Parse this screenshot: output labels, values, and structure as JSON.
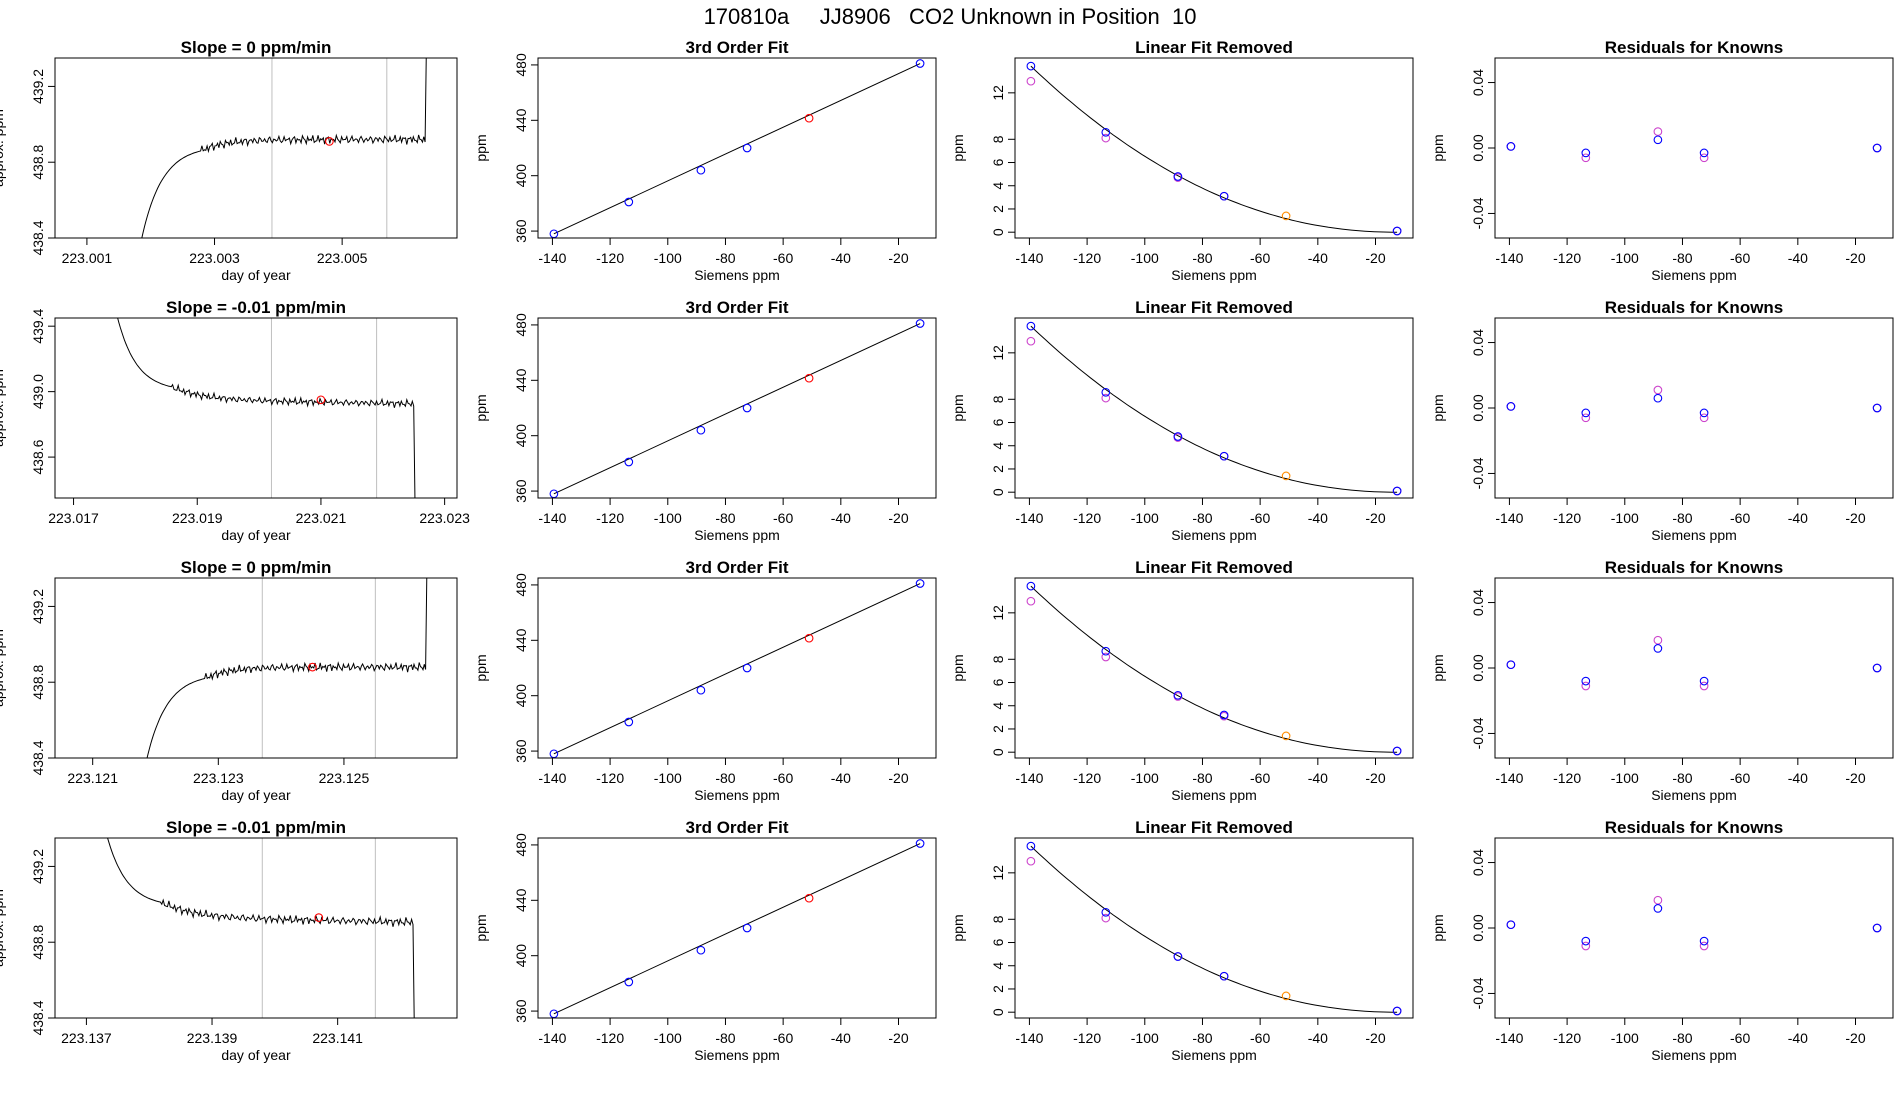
{
  "page": {
    "title": "170810a     JJ8906   CO2 Unknown in Position  10"
  },
  "colors": {
    "axis": "#000000",
    "trace": "#000000",
    "vline": "#bfbfbf",
    "known_point": "#0000ff",
    "unknown_point": "#ff0000",
    "fit_unknown_point": "#ff8c00",
    "initial_point": "#cc44cc"
  },
  "chart_data": [
    {
      "row": 1,
      "type": "line",
      "title": "Slope =  0  ppm/min",
      "xlabel": "day of year",
      "ylabel": "approx. ppm",
      "xlim": [
        223.0005,
        223.0068
      ],
      "ylim": [
        438.4,
        439.35
      ],
      "xticks": [
        223.001,
        223.003,
        223.005
      ],
      "xtick_labels": [
        "223.001",
        "223.003",
        "223.005"
      ],
      "yticks": [
        438.4,
        438.8,
        439.2
      ],
      "ytick_labels": [
        "438.4",
        "438.8",
        "439.2"
      ],
      "vlines": [
        223.0039,
        223.0057
      ],
      "trace_profile": "rise",
      "trace_start": 223.0018,
      "trace_end": 223.0063,
      "level": 438.92,
      "marker": {
        "x": 223.0048,
        "y": 438.91
      }
    },
    {
      "row": 1,
      "type": "scatter",
      "title": "3rd Order Fit",
      "xlabel": "Siemens ppm",
      "ylabel": "ppm",
      "xlim": [
        -145,
        -7
      ],
      "ylim": [
        355,
        485
      ],
      "xticks": [
        -140,
        -120,
        -100,
        -80,
        -60,
        -40,
        -20
      ],
      "xtick_labels": [
        "-140",
        "-120",
        "-100",
        "-80",
        "-60",
        "-40",
        "-20"
      ],
      "yticks": [
        360,
        400,
        440,
        480
      ],
      "ytick_labels": [
        "360",
        "400",
        "440",
        "480"
      ],
      "line": {
        "x": [
          -139.5,
          -12.5
        ],
        "y": [
          358,
          481
        ]
      },
      "known_points": {
        "x": [
          -139.5,
          -113.5,
          -88.5,
          -72.5,
          -12.5
        ],
        "y": [
          358,
          381,
          404,
          420,
          481
        ]
      },
      "unknown_point": {
        "x": -51,
        "y": 441.5
      }
    },
    {
      "row": 1,
      "type": "scatter",
      "title": "Linear Fit Removed",
      "xlabel": "Siemens ppm",
      "ylabel": "ppm",
      "xlim": [
        -145,
        -7
      ],
      "ylim": [
        -0.5,
        15
      ],
      "xticks": [
        -140,
        -120,
        -100,
        -80,
        -60,
        -40,
        -20
      ],
      "xtick_labels": [
        "-140",
        "-120",
        "-100",
        "-80",
        "-60",
        "-40",
        "-20"
      ],
      "yticks": [
        0,
        2,
        4,
        6,
        8,
        12
      ],
      "ytick_labels": [
        "0",
        "2",
        "4",
        "6",
        "8",
        "12"
      ],
      "fit_curve": {
        "x0": -139.5,
        "x1": -12.5,
        "y0": 14.3
      },
      "known_points": {
        "x": [
          -139.5,
          -113.5,
          -88.5,
          -72.5,
          -12.5
        ],
        "y": [
          14.3,
          8.6,
          4.8,
          3.1,
          0.1
        ]
      },
      "initial_points": {
        "x": [
          -139.5,
          -113.5,
          -88.5,
          -72.5,
          -12.5
        ],
        "y": [
          13.0,
          8.1,
          4.7,
          3.1,
          0.1
        ]
      },
      "unknown_point": {
        "x": -51,
        "y": 1.4
      }
    },
    {
      "row": 1,
      "type": "scatter",
      "title": "Residuals for Knowns",
      "xlabel": "Siemens ppm",
      "ylabel": "ppm",
      "xlim": [
        -145,
        -7
      ],
      "ylim": [
        -0.055,
        0.055
      ],
      "xticks": [
        -140,
        -120,
        -100,
        -80,
        -60,
        -40,
        -20
      ],
      "xtick_labels": [
        "-140",
        "-120",
        "-100",
        "-80",
        "-60",
        "-40",
        "-20"
      ],
      "yticks": [
        -0.04,
        0.0,
        0.04
      ],
      "ytick_labels": [
        "-0.04",
        "0.00",
        "0.04"
      ],
      "known_points": {
        "x": [
          -139.5,
          -113.5,
          -88.5,
          -72.5,
          -12.5
        ],
        "y": [
          0.001,
          -0.003,
          0.005,
          -0.003,
          0.0
        ]
      },
      "initial_points": {
        "x": [
          -139.5,
          -113.5,
          -88.5,
          -72.5,
          -12.5
        ],
        "y": [
          0.001,
          -0.006,
          0.01,
          -0.006,
          0.0
        ]
      }
    },
    {
      "row": 2,
      "type": "line",
      "title": "Slope =  -0.01  ppm/min",
      "xlabel": "day of year",
      "ylabel": "approx. ppm",
      "xlim": [
        223.0167,
        223.0232
      ],
      "ylim": [
        438.35,
        439.45
      ],
      "xticks": [
        223.017,
        223.019,
        223.021,
        223.023
      ],
      "xtick_labels": [
        "223.017",
        "223.019",
        "223.021",
        "223.023"
      ],
      "yticks": [
        438.6,
        439.0,
        439.4
      ],
      "ytick_labels": [
        "438.6",
        "439.0",
        "439.4"
      ],
      "vlines": [
        223.0202,
        223.0219
      ],
      "trace_profile": "fall",
      "trace_start": 223.0176,
      "trace_end": 223.0225,
      "level": 438.95,
      "marker": {
        "x": 223.021,
        "y": 438.95
      }
    },
    {
      "row": 2,
      "type": "scatter",
      "title": "3rd Order Fit",
      "xlabel": "Siemens ppm",
      "ylabel": "ppm",
      "xlim": [
        -145,
        -7
      ],
      "ylim": [
        355,
        485
      ],
      "xticks": [
        -140,
        -120,
        -100,
        -80,
        -60,
        -40,
        -20
      ],
      "xtick_labels": [
        "-140",
        "-120",
        "-100",
        "-80",
        "-60",
        "-40",
        "-20"
      ],
      "yticks": [
        360,
        400,
        440,
        480
      ],
      "ytick_labels": [
        "360",
        "400",
        "440",
        "480"
      ],
      "line": {
        "x": [
          -139.5,
          -12.5
        ],
        "y": [
          358,
          481
        ]
      },
      "known_points": {
        "x": [
          -139.5,
          -113.5,
          -88.5,
          -72.5,
          -12.5
        ],
        "y": [
          358,
          381,
          404,
          420,
          481
        ]
      },
      "unknown_point": {
        "x": -51,
        "y": 441.5
      }
    },
    {
      "row": 2,
      "type": "scatter",
      "title": "Linear Fit Removed",
      "xlabel": "Siemens ppm",
      "ylabel": "ppm",
      "xlim": [
        -145,
        -7
      ],
      "ylim": [
        -0.5,
        15
      ],
      "xticks": [
        -140,
        -120,
        -100,
        -80,
        -60,
        -40,
        -20
      ],
      "xtick_labels": [
        "-140",
        "-120",
        "-100",
        "-80",
        "-60",
        "-40",
        "-20"
      ],
      "yticks": [
        0,
        2,
        4,
        6,
        8,
        12
      ],
      "ytick_labels": [
        "0",
        "2",
        "4",
        "6",
        "8",
        "12"
      ],
      "fit_curve": {
        "x0": -139.5,
        "x1": -12.5,
        "y0": 14.3
      },
      "known_points": {
        "x": [
          -139.5,
          -113.5,
          -88.5,
          -72.5,
          -12.5
        ],
        "y": [
          14.3,
          8.6,
          4.8,
          3.1,
          0.1
        ]
      },
      "initial_points": {
        "x": [
          -139.5,
          -113.5,
          -88.5,
          -72.5,
          -12.5
        ],
        "y": [
          13.0,
          8.1,
          4.7,
          3.1,
          0.1
        ]
      },
      "unknown_point": {
        "x": -51,
        "y": 1.4
      }
    },
    {
      "row": 2,
      "type": "scatter",
      "title": "Residuals for Knowns",
      "xlabel": "Siemens ppm",
      "ylabel": "ppm",
      "xlim": [
        -145,
        -7
      ],
      "ylim": [
        -0.055,
        0.055
      ],
      "xticks": [
        -140,
        -120,
        -100,
        -80,
        -60,
        -40,
        -20
      ],
      "xtick_labels": [
        "-140",
        "-120",
        "-100",
        "-80",
        "-60",
        "-40",
        "-20"
      ],
      "yticks": [
        -0.04,
        0.0,
        0.04
      ],
      "ytick_labels": [
        "-0.04",
        "0.00",
        "0.04"
      ],
      "known_points": {
        "x": [
          -139.5,
          -113.5,
          -88.5,
          -72.5,
          -12.5
        ],
        "y": [
          0.001,
          -0.003,
          0.006,
          -0.003,
          0.0
        ]
      },
      "initial_points": {
        "x": [
          -139.5,
          -113.5,
          -88.5,
          -72.5,
          -12.5
        ],
        "y": [
          0.001,
          -0.006,
          0.011,
          -0.006,
          0.0
        ]
      }
    },
    {
      "row": 3,
      "type": "line",
      "title": "Slope =  0  ppm/min",
      "xlabel": "day of year",
      "ylabel": "approx. ppm",
      "xlim": [
        223.1204,
        223.1268
      ],
      "ylim": [
        438.4,
        439.35
      ],
      "xticks": [
        223.121,
        223.123,
        223.125
      ],
      "xtick_labels": [
        "223.121",
        "223.123",
        "223.125"
      ],
      "yticks": [
        438.4,
        438.8,
        439.2
      ],
      "ytick_labels": [
        "438.4",
        "438.8",
        "439.2"
      ],
      "vlines": [
        223.1237,
        223.1255
      ],
      "trace_profile": "rise",
      "trace_start": 223.1218,
      "trace_end": 223.1263,
      "level": 438.88,
      "marker": {
        "x": 223.1245,
        "y": 438.88
      }
    },
    {
      "row": 3,
      "type": "scatter",
      "title": "3rd Order Fit",
      "xlabel": "Siemens ppm",
      "ylabel": "ppm",
      "xlim": [
        -145,
        -7
      ],
      "ylim": [
        355,
        485
      ],
      "xticks": [
        -140,
        -120,
        -100,
        -80,
        -60,
        -40,
        -20
      ],
      "xtick_labels": [
        "-140",
        "-120",
        "-100",
        "-80",
        "-60",
        "-40",
        "-20"
      ],
      "yticks": [
        360,
        400,
        440,
        480
      ],
      "ytick_labels": [
        "360",
        "400",
        "440",
        "480"
      ],
      "line": {
        "x": [
          -139.5,
          -12.5
        ],
        "y": [
          358,
          481
        ]
      },
      "known_points": {
        "x": [
          -139.5,
          -113.5,
          -88.5,
          -72.5,
          -12.5
        ],
        "y": [
          358,
          381,
          404,
          420,
          481
        ]
      },
      "unknown_point": {
        "x": -51,
        "y": 441.5
      }
    },
    {
      "row": 3,
      "type": "scatter",
      "title": "Linear Fit Removed",
      "xlabel": "Siemens ppm",
      "ylabel": "ppm",
      "xlim": [
        -145,
        -7
      ],
      "ylim": [
        -0.5,
        15
      ],
      "xticks": [
        -140,
        -120,
        -100,
        -80,
        -60,
        -40,
        -20
      ],
      "xtick_labels": [
        "-140",
        "-120",
        "-100",
        "-80",
        "-60",
        "-40",
        "-20"
      ],
      "yticks": [
        0,
        2,
        4,
        6,
        8,
        12
      ],
      "ytick_labels": [
        "0",
        "2",
        "4",
        "6",
        "8",
        "12"
      ],
      "fit_curve": {
        "x0": -139.5,
        "x1": -12.5,
        "y0": 14.3
      },
      "known_points": {
        "x": [
          -139.5,
          -113.5,
          -88.5,
          -72.5,
          -12.5
        ],
        "y": [
          14.3,
          8.7,
          4.9,
          3.2,
          0.1
        ]
      },
      "initial_points": {
        "x": [
          -139.5,
          -113.5,
          -88.5,
          -72.5,
          -12.5
        ],
        "y": [
          13.0,
          8.2,
          4.8,
          3.1,
          0.1
        ]
      },
      "unknown_point": {
        "x": -51,
        "y": 1.4
      }
    },
    {
      "row": 3,
      "type": "scatter",
      "title": "Residuals for Knowns",
      "xlabel": "Siemens ppm",
      "ylabel": "ppm",
      "xlim": [
        -145,
        -7
      ],
      "ylim": [
        -0.055,
        0.055
      ],
      "xticks": [
        -140,
        -120,
        -100,
        -80,
        -60,
        -40,
        -20
      ],
      "xtick_labels": [
        "-140",
        "-120",
        "-100",
        "-80",
        "-60",
        "-40",
        "-20"
      ],
      "yticks": [
        -0.04,
        0.0,
        0.04
      ],
      "ytick_labels": [
        "-0.04",
        "0.00",
        "0.04"
      ],
      "known_points": {
        "x": [
          -139.5,
          -113.5,
          -88.5,
          -72.5,
          -12.5
        ],
        "y": [
          0.002,
          -0.008,
          0.012,
          -0.008,
          0.0
        ]
      },
      "initial_points": {
        "x": [
          -139.5,
          -113.5,
          -88.5,
          -72.5,
          -12.5
        ],
        "y": [
          0.002,
          -0.011,
          0.017,
          -0.011,
          0.0
        ]
      }
    },
    {
      "row": 4,
      "type": "line",
      "title": "Slope =  -0.01  ppm/min",
      "xlabel": "day of year",
      "ylabel": "approx. ppm",
      "xlim": [
        223.1365,
        223.1429
      ],
      "ylim": [
        438.4,
        439.35
      ],
      "xticks": [
        223.137,
        223.139,
        223.141
      ],
      "xtick_labels": [
        "223.137",
        "223.139",
        "223.141"
      ],
      "yticks": [
        438.4,
        438.8,
        439.2
      ],
      "ytick_labels": [
        "438.4",
        "438.8",
        "439.2"
      ],
      "vlines": [
        223.1398,
        223.1416
      ],
      "trace_profile": "fall",
      "trace_start": 223.1372,
      "trace_end": 223.1422,
      "level": 438.93,
      "marker": {
        "x": 223.1407,
        "y": 438.93
      }
    },
    {
      "row": 4,
      "type": "scatter",
      "title": "3rd Order Fit",
      "xlabel": "Siemens ppm",
      "ylabel": "ppm",
      "xlim": [
        -145,
        -7
      ],
      "ylim": [
        355,
        485
      ],
      "xticks": [
        -140,
        -120,
        -100,
        -80,
        -60,
        -40,
        -20
      ],
      "xtick_labels": [
        "-140",
        "-120",
        "-100",
        "-80",
        "-60",
        "-40",
        "-20"
      ],
      "yticks": [
        360,
        400,
        440,
        480
      ],
      "ytick_labels": [
        "360",
        "400",
        "440",
        "480"
      ],
      "line": {
        "x": [
          -139.5,
          -12.5
        ],
        "y": [
          358,
          481
        ]
      },
      "known_points": {
        "x": [
          -139.5,
          -113.5,
          -88.5,
          -72.5,
          -12.5
        ],
        "y": [
          358,
          381,
          404,
          420,
          481
        ]
      },
      "unknown_point": {
        "x": -51,
        "y": 441.5
      }
    },
    {
      "row": 4,
      "type": "scatter",
      "title": "Linear Fit Removed",
      "xlabel": "Siemens ppm",
      "ylabel": "ppm",
      "xlim": [
        -145,
        -7
      ],
      "ylim": [
        -0.5,
        15
      ],
      "xticks": [
        -140,
        -120,
        -100,
        -80,
        -60,
        -40,
        -20
      ],
      "xtick_labels": [
        "-140",
        "-120",
        "-100",
        "-80",
        "-60",
        "-40",
        "-20"
      ],
      "yticks": [
        0,
        2,
        4,
        6,
        8,
        12
      ],
      "ytick_labels": [
        "0",
        "2",
        "4",
        "6",
        "8",
        "12"
      ],
      "fit_curve": {
        "x0": -139.5,
        "x1": -12.5,
        "y0": 14.3
      },
      "known_points": {
        "x": [
          -139.5,
          -113.5,
          -88.5,
          -72.5,
          -12.5
        ],
        "y": [
          14.3,
          8.6,
          4.8,
          3.1,
          0.1
        ]
      },
      "initial_points": {
        "x": [
          -139.5,
          -113.5,
          -88.5,
          -72.5,
          -12.5
        ],
        "y": [
          13.0,
          8.1,
          4.8,
          3.1,
          0.1
        ]
      },
      "unknown_point": {
        "x": -51,
        "y": 1.4
      }
    },
    {
      "row": 4,
      "type": "scatter",
      "title": "Residuals for Knowns",
      "xlabel": "Siemens ppm",
      "ylabel": "ppm",
      "xlim": [
        -145,
        -7
      ],
      "ylim": [
        -0.055,
        0.055
      ],
      "xticks": [
        -140,
        -120,
        -100,
        -80,
        -60,
        -40,
        -20
      ],
      "xtick_labels": [
        "-140",
        "-120",
        "-100",
        "-80",
        "-60",
        "-40",
        "-20"
      ],
      "yticks": [
        -0.04,
        0.0,
        0.04
      ],
      "ytick_labels": [
        "-0.04",
        "0.00",
        "0.04"
      ],
      "known_points": {
        "x": [
          -139.5,
          -113.5,
          -88.5,
          -72.5,
          -12.5
        ],
        "y": [
          0.002,
          -0.008,
          0.012,
          -0.008,
          0.0
        ]
      },
      "initial_points": {
        "x": [
          -139.5,
          -113.5,
          -88.5,
          -72.5,
          -12.5
        ],
        "y": [
          0.002,
          -0.011,
          0.017,
          -0.011,
          0.0
        ]
      }
    }
  ]
}
